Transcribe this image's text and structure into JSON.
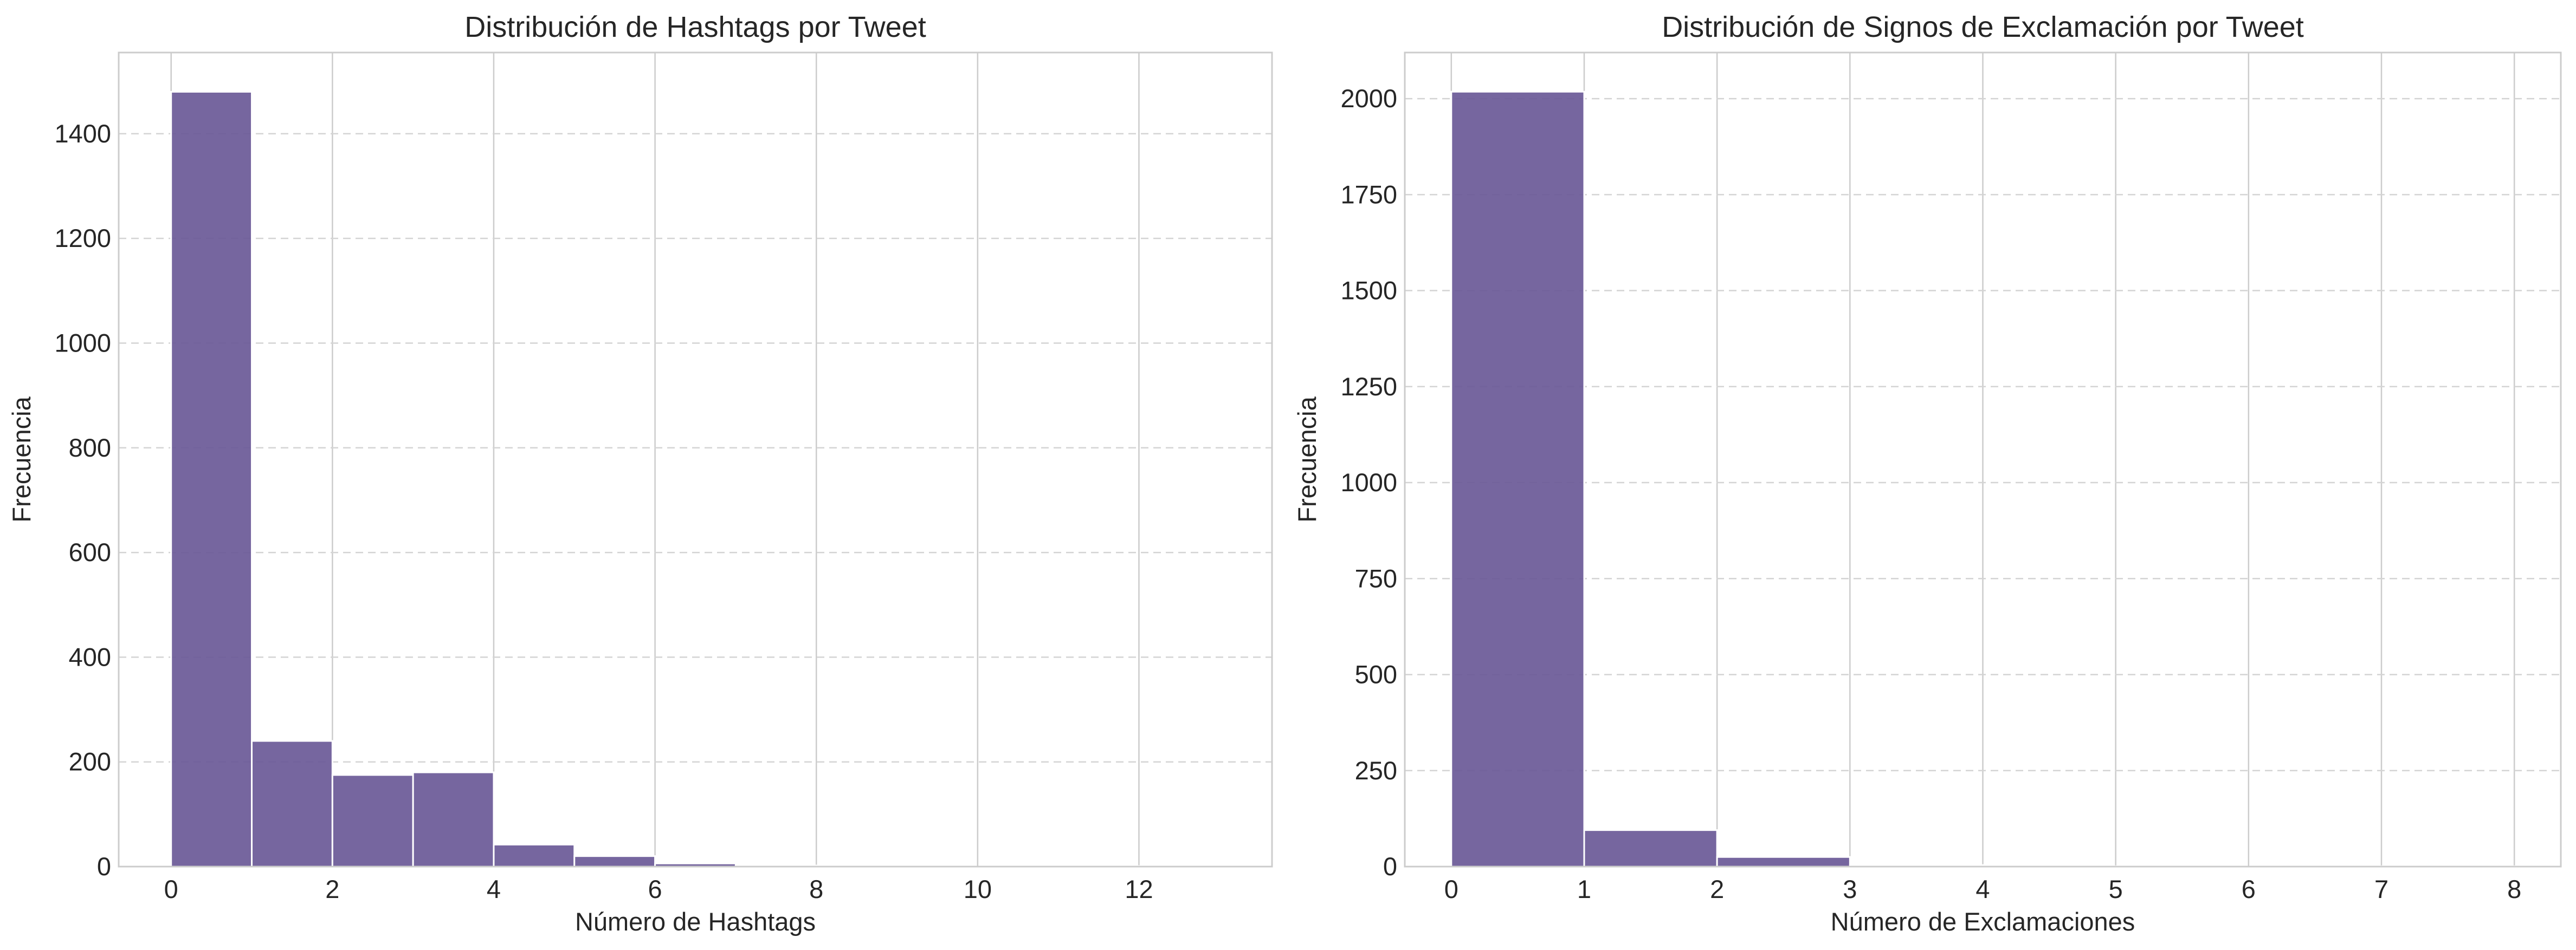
{
  "chart_data": [
    {
      "type": "bar",
      "title": "Distribución de Hashtags por Tweet",
      "xlabel": "Número de Hashtags",
      "ylabel": "Frecuencia",
      "bin_edges": [
        0,
        1,
        2,
        3,
        4,
        5,
        6,
        7,
        8,
        9,
        10,
        11,
        12,
        13
      ],
      "values": [
        1480,
        240,
        175,
        180,
        42,
        20,
        6,
        2,
        1,
        0,
        0,
        0,
        1
      ],
      "xlim": [
        -0.65,
        13.65
      ],
      "ylim": [
        0,
        1555
      ],
      "xticks": [
        0,
        2,
        4,
        6,
        8,
        10,
        12
      ],
      "yticks": [
        0,
        200,
        400,
        600,
        800,
        1000,
        1200,
        1400
      ],
      "bar_color": "#6a5997",
      "grid": true
    },
    {
      "type": "bar",
      "title": "Distribución de Signos de Exclamación por Tweet",
      "xlabel": "Número de Exclamaciones",
      "ylabel": "Frecuencia",
      "bin_edges": [
        0,
        1,
        2,
        3,
        4,
        5,
        6,
        7,
        8
      ],
      "values": [
        2018,
        95,
        25,
        4,
        1,
        0,
        0,
        1
      ],
      "xlim": [
        -0.35,
        8.35
      ],
      "ylim": [
        0,
        2120
      ],
      "xticks": [
        0,
        1,
        2,
        3,
        4,
        5,
        6,
        7,
        8
      ],
      "yticks": [
        0,
        250,
        500,
        750,
        1000,
        1250,
        1500,
        1750,
        2000
      ],
      "bar_color": "#6a5997",
      "grid": true
    }
  ]
}
